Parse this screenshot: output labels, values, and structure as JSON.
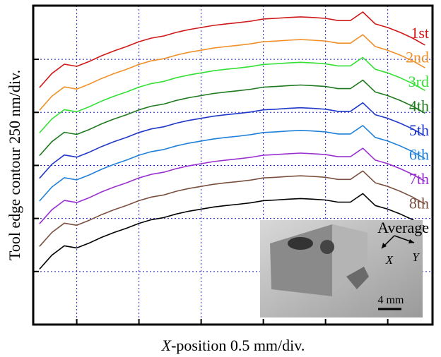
{
  "chart_data": {
    "type": "line",
    "xlabel": "X-position 0.5 mm/div.",
    "ylabel": "Tool edge contour 250 nm/div.",
    "x": [
      -0.3,
      -0.2,
      -0.1,
      0.0,
      0.1,
      0.2,
      0.3,
      0.4,
      0.5,
      0.6,
      0.7,
      0.8,
      0.9,
      1.0,
      1.1,
      1.2,
      1.3,
      1.4,
      1.5,
      1.6,
      1.7,
      1.8,
      1.9,
      2.0,
      2.1,
      2.2,
      2.3,
      2.4,
      2.5,
      2.6,
      2.7,
      2.8
    ],
    "xlim": [
      -0.35,
      2.86
    ],
    "xticks": [
      0,
      0.5,
      1,
      1.5,
      2,
      2.5
    ],
    "ylim": [
      -250,
      1253
    ],
    "yticks": [
      0,
      250,
      500,
      750,
      1000
    ],
    "grid": true,
    "series": [
      {
        "name": "1st",
        "color": "#d01818",
        "values": [
          867,
          933,
          977,
          967,
          990,
          1017,
          1040,
          1060,
          1083,
          1100,
          1110,
          1127,
          1140,
          1150,
          1160,
          1167,
          1173,
          1180,
          1190,
          1193,
          1197,
          1200,
          1197,
          1193,
          1183,
          1183,
          1223,
          1167,
          1150,
          1127,
          1100,
          1067
        ]
      },
      {
        "name": "2nd",
        "color": "#f0902a",
        "values": [
          760,
          826,
          870,
          860,
          883,
          910,
          933,
          953,
          976,
          993,
          1003,
          1020,
          1033,
          1043,
          1053,
          1060,
          1066,
          1073,
          1083,
          1086,
          1090,
          1093,
          1090,
          1086,
          1076,
          1076,
          1116,
          1060,
          1043,
          1020,
          993,
          960
        ]
      },
      {
        "name": "3rd",
        "color": "#34e034",
        "values": [
          653,
          719,
          763,
          753,
          776,
          803,
          826,
          846,
          869,
          886,
          896,
          913,
          926,
          936,
          946,
          953,
          959,
          966,
          976,
          979,
          983,
          986,
          983,
          979,
          969,
          969,
          1009,
          953,
          936,
          913,
          886,
          853
        ]
      },
      {
        "name": "4th",
        "color": "#1f7a1f",
        "values": [
          546,
          612,
          656,
          646,
          669,
          696,
          719,
          739,
          762,
          779,
          789,
          806,
          819,
          829,
          839,
          846,
          852,
          859,
          869,
          872,
          876,
          879,
          876,
          872,
          862,
          862,
          902,
          846,
          829,
          806,
          779,
          746
        ]
      },
      {
        "name": "5th",
        "color": "#2038c8",
        "values": [
          439,
          505,
          549,
          539,
          562,
          589,
          612,
          632,
          655,
          672,
          682,
          699,
          712,
          722,
          732,
          739,
          745,
          752,
          762,
          765,
          769,
          772,
          769,
          765,
          755,
          755,
          795,
          739,
          722,
          699,
          672,
          639
        ]
      },
      {
        "name": "6th",
        "color": "#2080d8",
        "values": [
          332,
          398,
          442,
          432,
          455,
          482,
          505,
          525,
          548,
          565,
          575,
          592,
          605,
          615,
          625,
          632,
          638,
          645,
          655,
          658,
          662,
          665,
          662,
          658,
          648,
          648,
          688,
          632,
          615,
          592,
          565,
          532
        ]
      },
      {
        "name": "7th",
        "color": "#9a30d0",
        "values": [
          225,
          291,
          335,
          325,
          348,
          375,
          398,
          418,
          441,
          458,
          468,
          485,
          498,
          508,
          518,
          525,
          531,
          538,
          548,
          551,
          555,
          558,
          555,
          551,
          541,
          541,
          581,
          525,
          508,
          485,
          458,
          425
        ]
      },
      {
        "name": "8th",
        "color": "#7a5040",
        "values": [
          118,
          184,
          228,
          218,
          241,
          268,
          291,
          311,
          334,
          351,
          361,
          378,
          391,
          401,
          411,
          418,
          424,
          431,
          441,
          444,
          448,
          451,
          448,
          444,
          434,
          434,
          474,
          418,
          401,
          378,
          351,
          318
        ]
      },
      {
        "name": "Average",
        "color": "#000000",
        "values": [
          11,
          77,
          121,
          111,
          134,
          161,
          184,
          204,
          227,
          244,
          254,
          271,
          284,
          294,
          304,
          311,
          317,
          324,
          334,
          337,
          341,
          344,
          341,
          337,
          327,
          327,
          367,
          311,
          294,
          271,
          244,
          211
        ]
      }
    ],
    "inset": {
      "x_label": "X",
      "y_label": "Y",
      "scale_label": "4 mm"
    }
  }
}
